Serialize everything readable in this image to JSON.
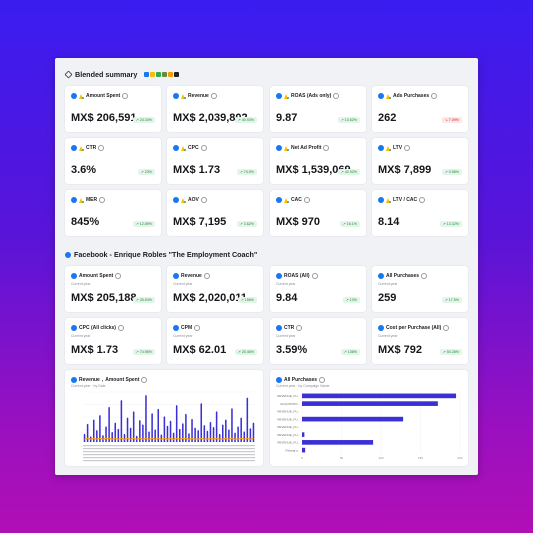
{
  "blended": {
    "title": "Blended summary",
    "cards": [
      {
        "label": "Amount Spent",
        "value": "MX$ 206,591",
        "change": "↗ 24.34%",
        "dir": "up"
      },
      {
        "label": "Revenue",
        "value": "MX$ 2,039,802",
        "change": "↗ 40.93%",
        "dir": "up"
      },
      {
        "label": "ROAS (Ads only)",
        "value": "9.87",
        "change": "↗ 13.52%",
        "dir": "up"
      },
      {
        "label": "Ads Purchases",
        "value": "262",
        "change": "↘ 7.09%",
        "dir": "down"
      },
      {
        "label": "CTR",
        "value": "3.6%",
        "change": "↗ 23%",
        "dir": "up"
      },
      {
        "label": "CPC",
        "value": "MX$ 1.73",
        "change": "↗ 74.9%",
        "dir": "up"
      },
      {
        "label": "Net Ad Profit",
        "value": "MX$ 1,539,069",
        "change": "↗ 42.92%",
        "dir": "up"
      },
      {
        "label": "LTV",
        "value": "MX$ 7,899",
        "change": "↗ 0.98%",
        "dir": "up"
      },
      {
        "label": "MER",
        "value": "845%",
        "change": "↗ 12.89%",
        "dir": "up"
      },
      {
        "label": "AOV",
        "value": "MX$ 7,195",
        "change": "↗ 3.62%",
        "dir": "up"
      },
      {
        "label": "CAC",
        "value": "MX$ 970",
        "change": "↗ 16.1%",
        "dir": "up"
      },
      {
        "label": "LTV / CAC",
        "value": "8.14",
        "change": "↗ 13.32%",
        "dir": "up"
      }
    ]
  },
  "facebook": {
    "title": "Facebook - Enrique Robles \"The Employment Coach\"",
    "cards": [
      {
        "label": "Amount Spent",
        "sub": "Current year",
        "value": "MX$ 205,188",
        "change": "↗ 35.54%",
        "dir": "up"
      },
      {
        "label": "Revenue",
        "sub": "Current year",
        "value": "MX$ 2,020,011",
        "change": "↗ 156%",
        "dir": "up"
      },
      {
        "label": "ROAS (All)",
        "sub": "Current year",
        "value": "9.84",
        "change": "↗ 13%",
        "dir": "up"
      },
      {
        "label": "All Purchases",
        "sub": "Current year",
        "value": "259",
        "change": "↗ 17.5%",
        "dir": "up"
      },
      {
        "label": "CPC (All clicks)",
        "sub": "Current year",
        "value": "MX$ 1.73",
        "change": "↗ 74.96%",
        "dir": "up"
      },
      {
        "label": "CPM",
        "sub": "Current year",
        "value": "MX$ 62.01",
        "change": "↗ 25.46%",
        "dir": "up"
      },
      {
        "label": "CTR",
        "sub": "Current year",
        "value": "3.59%",
        "change": "↗ 108%",
        "dir": "up"
      },
      {
        "label": "Cost per Purchase (All)",
        "sub": "Current year",
        "value": "MX$ 792",
        "change": "↗ 50.28%",
        "dir": "up"
      }
    ]
  },
  "chart_left": {
    "title_a": "Revenue",
    "title_b": "Amount Spent",
    "sub": "Current year · by Date",
    "colors": {
      "bars": "#3b2fd6",
      "line": "#f59e0b"
    }
  },
  "chart_right": {
    "title": "All Purchases",
    "sub": "Current year · by Campaign Name",
    "color": "#3b2fd6"
  },
  "chart_data": [
    {
      "type": "bar",
      "title": "Revenue, Amount Spent",
      "series": [
        {
          "name": "Revenue",
          "values": [
            12,
            28,
            8,
            35,
            18,
            42,
            10,
            24,
            55,
            15,
            30,
            20,
            66,
            12,
            38,
            22,
            48,
            9,
            34,
            27,
            74,
            16,
            45,
            19,
            52,
            11,
            40,
            25,
            33,
            14,
            58,
            20,
            29,
            44,
            13,
            36,
            22,
            18,
            61,
            26,
            17,
            31,
            23,
            48,
            12,
            27,
            35,
            19,
            53,
            14,
            24,
            38,
            16,
            70,
            21,
            30
          ]
        },
        {
          "name": "Amount Spent",
          "values": [
            3,
            4,
            3,
            4,
            3,
            4,
            3,
            4,
            4,
            3,
            4,
            3,
            4,
            3,
            4,
            3,
            4,
            3,
            4,
            3,
            4,
            3,
            4,
            3,
            4,
            3,
            4,
            3,
            4,
            3,
            4,
            3,
            4,
            4,
            3,
            4,
            3,
            3,
            4,
            3,
            3,
            4,
            3,
            4,
            3,
            3,
            4,
            3,
            4,
            3,
            3,
            4,
            3,
            4,
            3,
            4
          ]
        }
      ]
    },
    {
      "type": "bar",
      "title": "All Purchases",
      "categories": [
        "REVENUE_FU...",
        "ACQUISITIO...",
        "REVENUE_FU...",
        "REVENUE_FU...",
        "REVENUE_FU...",
        "REVENUE_FU...",
        "REVENUE_FU...",
        "Retargt y..."
      ],
      "values": [
        195,
        172,
        0,
        128,
        0,
        3,
        90,
        4
      ],
      "xlim": [
        0,
        200
      ]
    }
  ]
}
